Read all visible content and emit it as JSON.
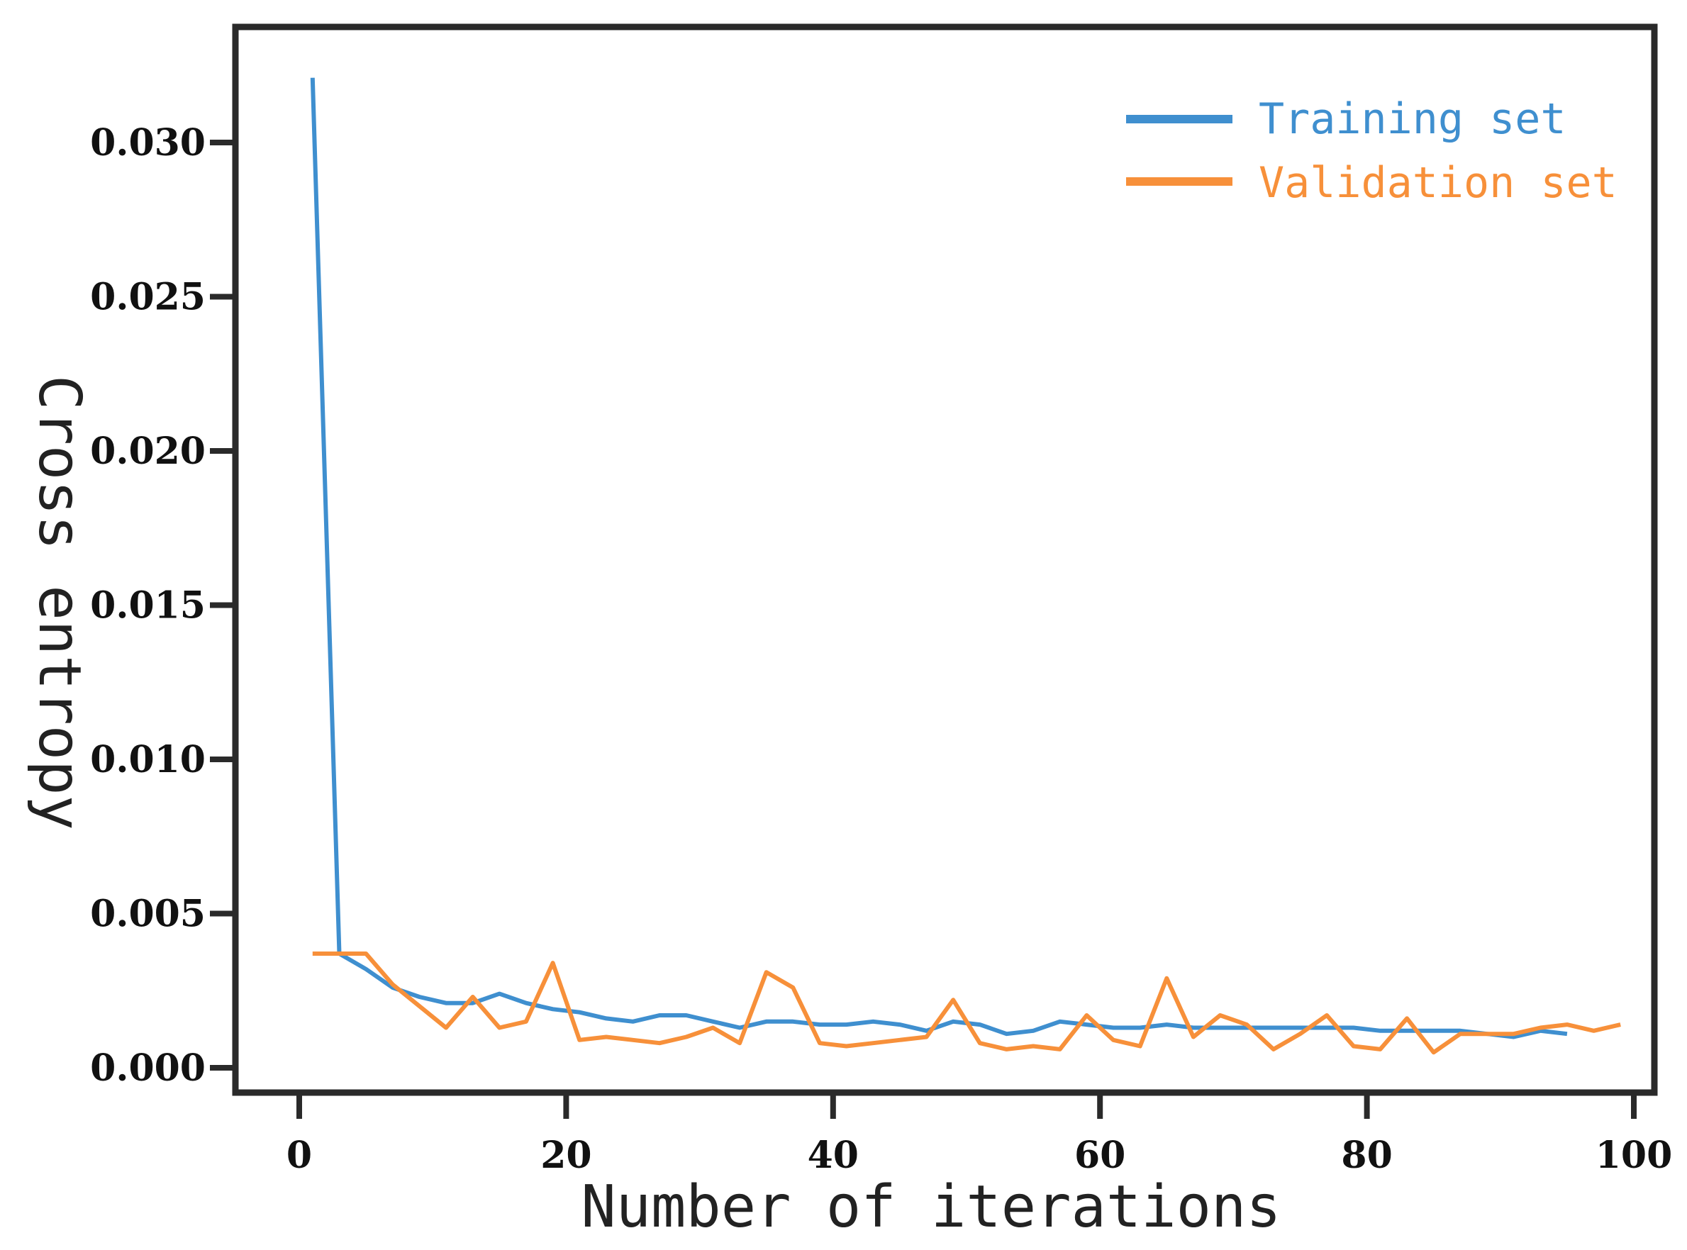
{
  "colors": {
    "training": "#3f8fcf",
    "validation": "#f7903a",
    "frame": "#2a2a2a"
  },
  "chart_data": {
    "type": "line",
    "title": "",
    "xlabel": "Number of iterations",
    "ylabel": "Cross entropy",
    "xlim": [
      0,
      100
    ],
    "ylim": [
      0,
      0.033
    ],
    "xticks": [
      0,
      20,
      40,
      60,
      80,
      100
    ],
    "xtick_labels": [
      "0",
      "20",
      "40",
      "60",
      "80",
      "100"
    ],
    "yticks": [
      0,
      0.005,
      0.01,
      0.015,
      0.02,
      0.025,
      0.03
    ],
    "ytick_labels": [
      "0.000",
      "0.005",
      "0.010",
      "0.015",
      "0.020",
      "0.025",
      "0.030"
    ],
    "grid": false,
    "legend_position": "top-right",
    "series": [
      {
        "name": "Training set",
        "x": [
          1,
          3,
          5,
          7,
          9,
          11,
          13,
          15,
          17,
          19,
          21,
          23,
          25,
          27,
          29,
          31,
          33,
          35,
          37,
          39,
          41,
          43,
          45,
          47,
          49,
          51,
          53,
          55,
          57,
          59,
          61,
          63,
          65,
          67,
          69,
          71,
          73,
          75,
          77,
          79,
          81,
          83,
          85,
          87,
          89,
          91,
          93,
          95
        ],
        "values": [
          0.0321,
          0.0037,
          0.0032,
          0.0026,
          0.0023,
          0.0021,
          0.0021,
          0.0024,
          0.0021,
          0.0019,
          0.0018,
          0.0016,
          0.0015,
          0.0017,
          0.0017,
          0.0015,
          0.0013,
          0.0015,
          0.0015,
          0.0014,
          0.0014,
          0.0015,
          0.0014,
          0.0012,
          0.0015,
          0.0014,
          0.0011,
          0.0012,
          0.0015,
          0.0014,
          0.0013,
          0.0013,
          0.0014,
          0.0013,
          0.0013,
          0.0013,
          0.0013,
          0.0013,
          0.0013,
          0.0013,
          0.0012,
          0.0012,
          0.0012,
          0.0012,
          0.0011,
          0.001,
          0.0012,
          0.0011
        ]
      },
      {
        "name": "Validation set",
        "x": [
          1,
          3,
          5,
          7,
          9,
          11,
          13,
          15,
          17,
          19,
          21,
          23,
          25,
          27,
          29,
          31,
          33,
          35,
          37,
          39,
          41,
          43,
          45,
          47,
          49,
          51,
          53,
          55,
          57,
          59,
          61,
          63,
          65,
          67,
          69,
          71,
          73,
          75,
          77,
          79,
          81,
          83,
          85,
          87,
          89,
          91,
          93,
          95,
          97,
          99
        ],
        "values": [
          0.0037,
          0.0037,
          0.0037,
          0.0027,
          0.002,
          0.0013,
          0.0023,
          0.0013,
          0.0015,
          0.0034,
          0.0009,
          0.001,
          0.0009,
          0.0008,
          0.001,
          0.0013,
          0.0008,
          0.0031,
          0.0026,
          0.0008,
          0.0007,
          0.0008,
          0.0009,
          0.001,
          0.0022,
          0.0008,
          0.0006,
          0.0007,
          0.0006,
          0.0017,
          0.0009,
          0.0007,
          0.0029,
          0.001,
          0.0017,
          0.0014,
          0.0006,
          0.0011,
          0.0017,
          0.0007,
          0.0006,
          0.0016,
          0.0005,
          0.0011,
          0.0011,
          0.0011,
          0.0013,
          0.0014,
          0.0012,
          0.0014
        ]
      }
    ]
  }
}
